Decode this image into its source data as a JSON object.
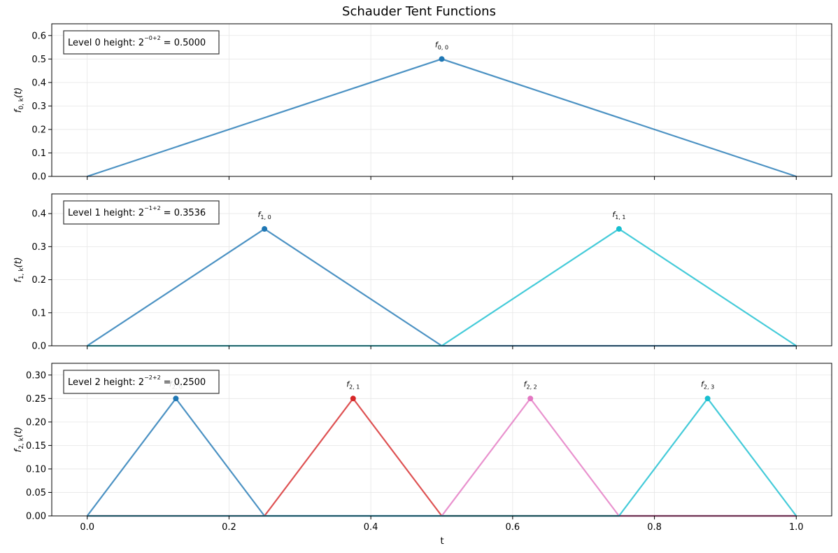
{
  "title": "Schauder Tent Functions",
  "xlabel": "t",
  "colors": {
    "blue": "#1f77b4",
    "red": "#d62728",
    "pink": "#e377c2",
    "cyan": "#17becf",
    "grid": "#e6e6e6",
    "box_border": "#333333"
  },
  "chart_data": [
    {
      "type": "line",
      "ylabel": "f_{0,k}(t)",
      "xlim": [
        -0.05,
        1.05
      ],
      "ylim": [
        0,
        0.65
      ],
      "xticks": [
        0.0,
        0.2,
        0.4,
        0.6,
        0.8,
        1.0
      ],
      "xtick_labels_visible": false,
      "yticks": [
        0.0,
        0.1,
        0.2,
        0.3,
        0.4,
        0.5,
        0.6
      ],
      "ytick_labels": [
        "0.0",
        "0.1",
        "0.2",
        "0.3",
        "0.4",
        "0.5",
        "0.6"
      ],
      "grid": true,
      "annotation": {
        "prefix": "Level 0 height: ",
        "level": "0",
        "value": "0.5000"
      },
      "series": [
        {
          "color": "blue",
          "x": [
            0,
            0.5,
            1.0
          ],
          "y": [
            0,
            0.5,
            0
          ],
          "peak": [
            0.5,
            0.5
          ],
          "label_sub": "0, 0"
        }
      ]
    },
    {
      "type": "line",
      "ylabel": "f_{1,k}(t)",
      "xlim": [
        -0.05,
        1.05
      ],
      "ylim": [
        0,
        0.4596
      ],
      "xticks": [
        0.0,
        0.2,
        0.4,
        0.6,
        0.8,
        1.0
      ],
      "xtick_labels_visible": false,
      "yticks": [
        0.0,
        0.1,
        0.2,
        0.3,
        0.4
      ],
      "ytick_labels": [
        "0.0",
        "0.1",
        "0.2",
        "0.3",
        "0.4"
      ],
      "grid": true,
      "annotation": {
        "prefix": "Level 1 height: ",
        "level": "1",
        "value": "0.3536"
      },
      "series": [
        {
          "color": "blue",
          "x": [
            0,
            0.25,
            0.5,
            1.0
          ],
          "y": [
            0,
            0.3536,
            0,
            0
          ],
          "peak": [
            0.25,
            0.3536
          ],
          "label_sub": "1, 0"
        },
        {
          "color": "cyan",
          "x": [
            0,
            0.5,
            0.75,
            1.0
          ],
          "y": [
            0,
            0,
            0.3536,
            0
          ],
          "peak": [
            0.75,
            0.3536
          ],
          "label_sub": "1, 1"
        }
      ]
    },
    {
      "type": "line",
      "ylabel": "f_{2,k}(t)",
      "xlim": [
        -0.05,
        1.05
      ],
      "ylim": [
        0,
        0.325
      ],
      "xticks": [
        0.0,
        0.2,
        0.4,
        0.6,
        0.8,
        1.0
      ],
      "xtick_labels": [
        "0.0",
        "0.2",
        "0.4",
        "0.6",
        "0.8",
        "1.0"
      ],
      "xtick_labels_visible": true,
      "yticks": [
        0.0,
        0.05,
        0.1,
        0.15,
        0.2,
        0.25,
        0.3
      ],
      "ytick_labels": [
        "0.00",
        "0.05",
        "0.10",
        "0.15",
        "0.20",
        "0.25",
        "0.30"
      ],
      "grid": true,
      "annotation": {
        "prefix": "Level 2 height: ",
        "level": "2",
        "value": "0.2500"
      },
      "series": [
        {
          "color": "blue",
          "x": [
            0,
            0.125,
            0.25,
            1.0
          ],
          "y": [
            0,
            0.25,
            0,
            0
          ],
          "peak": [
            0.125,
            0.25
          ],
          "label_sub": "2, 0"
        },
        {
          "color": "red",
          "x": [
            0,
            0.25,
            0.375,
            0.5,
            1.0
          ],
          "y": [
            0,
            0,
            0.25,
            0,
            0
          ],
          "peak": [
            0.375,
            0.25
          ],
          "label_sub": "2, 1"
        },
        {
          "color": "pink",
          "x": [
            0,
            0.5,
            0.625,
            0.75,
            1.0
          ],
          "y": [
            0,
            0,
            0.25,
            0,
            0
          ],
          "peak": [
            0.625,
            0.25
          ],
          "label_sub": "2, 2"
        },
        {
          "color": "cyan",
          "x": [
            0,
            0.75,
            0.875,
            1.0
          ],
          "y": [
            0,
            0,
            0.25,
            0
          ],
          "peak": [
            0.875,
            0.25
          ],
          "label_sub": "2, 3"
        }
      ]
    }
  ]
}
